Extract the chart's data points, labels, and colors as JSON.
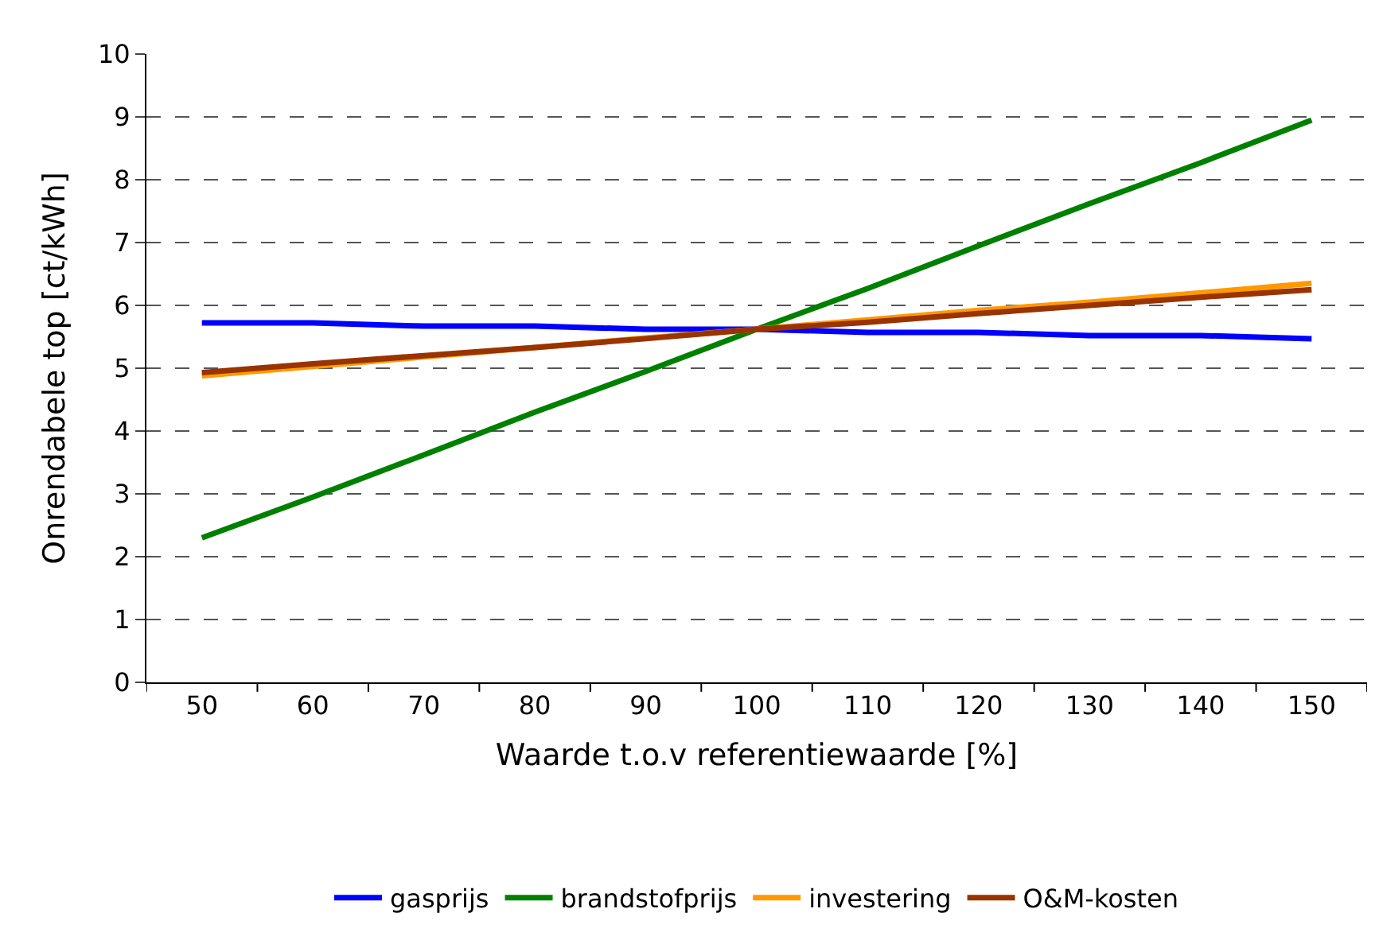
{
  "chart_data": {
    "type": "line",
    "xlabel": "Waarde t.o.v referentiewaarde [%]",
    "ylabel": "Onrendabele top [ct/kWh]",
    "categories": [
      "50",
      "60",
      "70",
      "80",
      "90",
      "100",
      "110",
      "120",
      "130",
      "140",
      "150"
    ],
    "series": [
      {
        "name": "gasprijs",
        "color": "#0000ff",
        "values": [
          5.72,
          5.72,
          5.67,
          5.67,
          5.62,
          5.62,
          5.57,
          5.57,
          5.52,
          5.52,
          5.47
        ]
      },
      {
        "name": "brandstofprijs",
        "color": "#008000",
        "values": [
          2.3,
          2.95,
          3.62,
          4.3,
          4.95,
          5.62,
          6.27,
          6.95,
          7.62,
          8.27,
          8.95
        ]
      },
      {
        "name": "investering",
        "color": "#ff9900",
        "values": [
          4.88,
          5.03,
          5.18,
          5.33,
          5.48,
          5.62,
          5.77,
          5.92,
          6.05,
          6.2,
          6.35
        ]
      },
      {
        "name": "O&M-kosten",
        "color": "#993300",
        "values": [
          4.93,
          5.07,
          5.2,
          5.33,
          5.47,
          5.62,
          5.73,
          5.87,
          6.0,
          6.13,
          6.25
        ]
      }
    ],
    "ylim": [
      0,
      10
    ],
    "yticks": [
      0,
      1,
      2,
      3,
      4,
      5,
      6,
      7,
      8,
      9,
      10
    ],
    "grid": "y",
    "legend": "bottom",
    "marker": "none",
    "line_style": "solid"
  }
}
